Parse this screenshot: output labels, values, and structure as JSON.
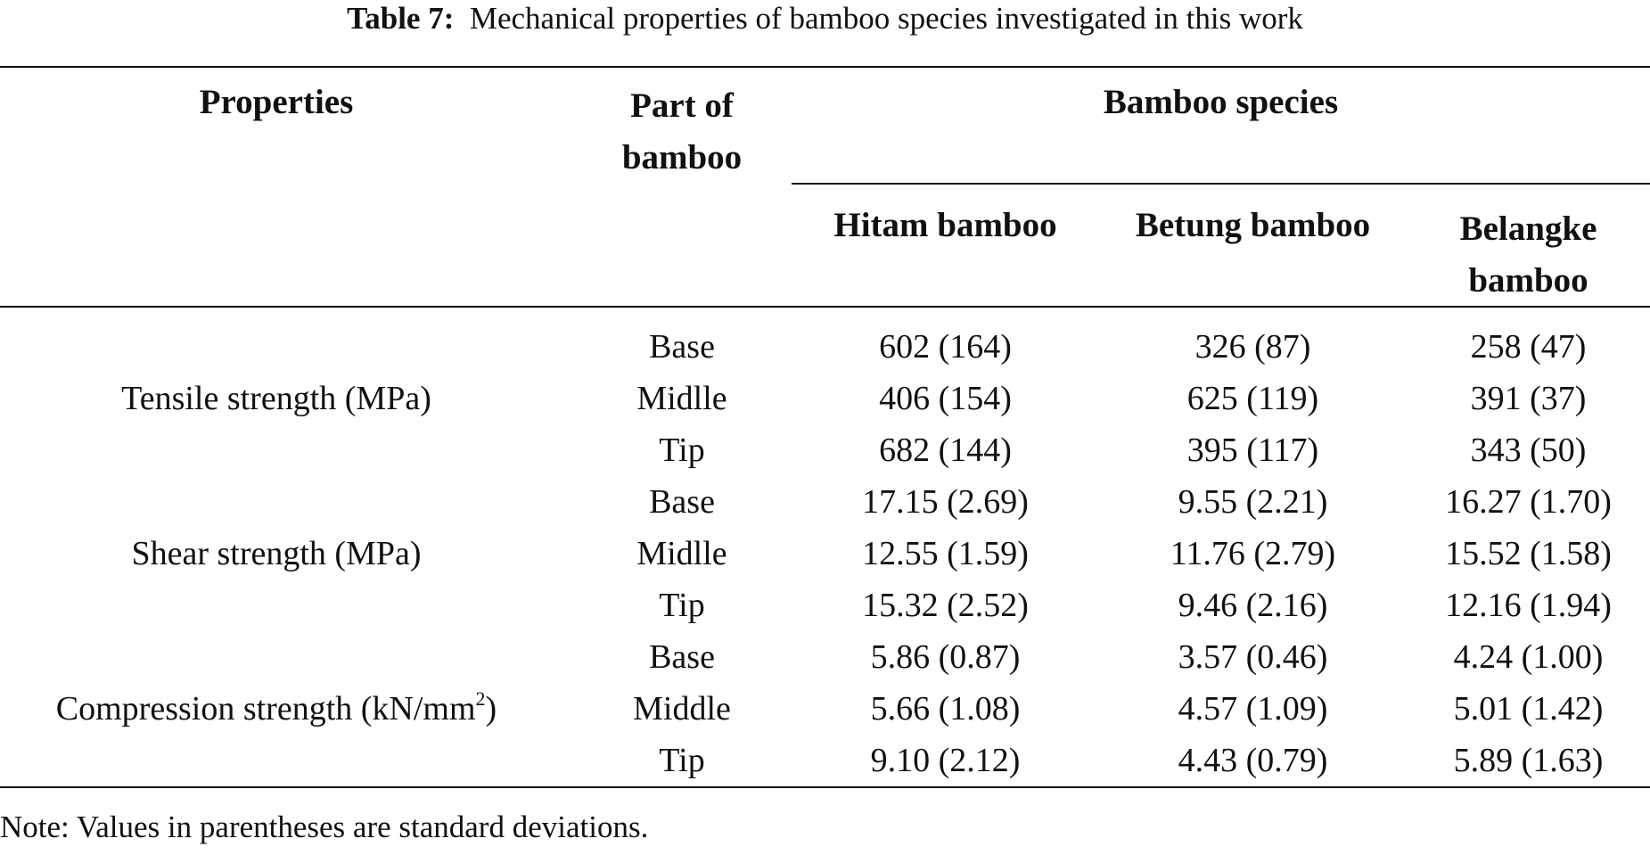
{
  "caption": {
    "label": "Table 7:",
    "text": "Mechanical properties of bamboo species investigated in this work"
  },
  "headers": {
    "properties": "Properties",
    "part": "Part of bamboo",
    "species_group": "Bamboo species",
    "species": [
      "Hitam bamboo",
      "Betung bamboo",
      "Belangke bamboo"
    ]
  },
  "groups": [
    {
      "property": "Tensile strength (MPa)",
      "property_unit_sup": "",
      "property_suffix": "",
      "rows": [
        {
          "part": "Base",
          "values": [
            "602 (164)",
            "326 (87)",
            "258 (47)"
          ]
        },
        {
          "part": "Midlle",
          "values": [
            "406 (154)",
            "625 (119)",
            "391 (37)"
          ]
        },
        {
          "part": "Tip",
          "values": [
            "682 (144)",
            "395 (117)",
            "343 (50)"
          ]
        }
      ]
    },
    {
      "property": "Shear strength (MPa)",
      "property_unit_sup": "",
      "property_suffix": "",
      "rows": [
        {
          "part": "Base",
          "values": [
            "17.15 (2.69)",
            "9.55 (2.21)",
            "16.27 (1.70)"
          ]
        },
        {
          "part": "Midlle",
          "values": [
            "12.55 (1.59)",
            "11.76 (2.79)",
            "15.52 (1.58)"
          ]
        },
        {
          "part": "Tip",
          "values": [
            "15.32 (2.52)",
            "9.46 (2.16)",
            "12.16 (1.94)"
          ]
        }
      ]
    },
    {
      "property": "Compression strength (kN/mm",
      "property_unit_sup": "2",
      "property_suffix": ")",
      "rows": [
        {
          "part": "Base",
          "values": [
            "5.86 (0.87)",
            "3.57 (0.46)",
            "4.24 (1.00)"
          ]
        },
        {
          "part": "Middle",
          "values": [
            "5.66 (1.08)",
            "4.57 (1.09)",
            "5.01 (1.42)"
          ]
        },
        {
          "part": "Tip",
          "values": [
            "9.10 (2.12)",
            "4.43 (0.79)",
            "5.89 (1.63)"
          ]
        }
      ]
    }
  ],
  "note": "Note: Values in parentheses are standard deviations."
}
